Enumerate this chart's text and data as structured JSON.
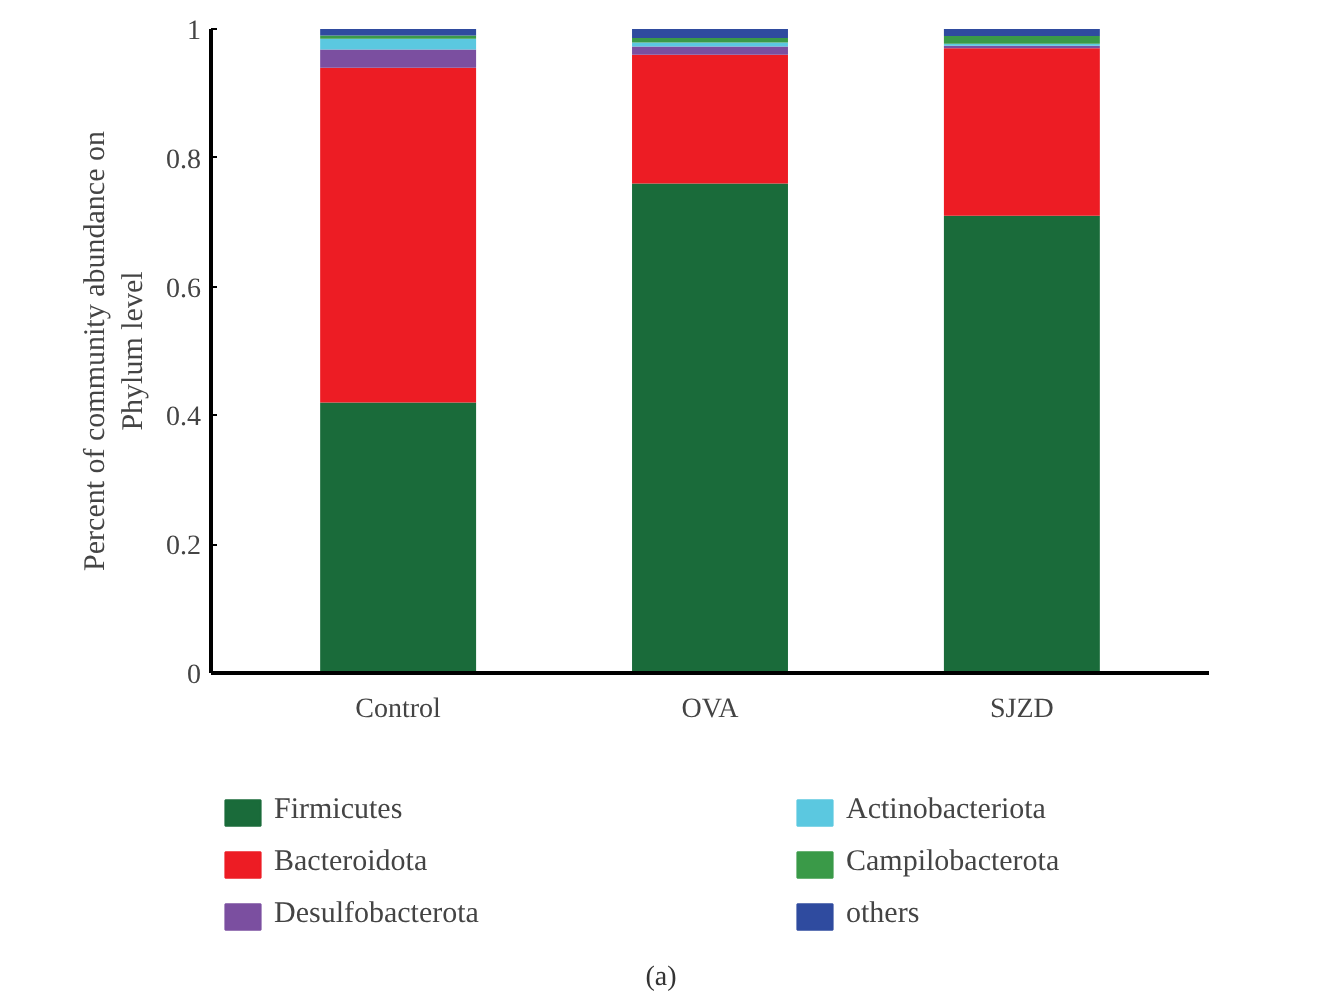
{
  "chart_data": {
    "type": "bar",
    "stacked": true,
    "ylabel": "Percent of community abundance on Phylum level",
    "categories": [
      "Control",
      "OVA",
      "SJZD"
    ],
    "series": [
      {
        "name": "Firmicutes",
        "color": "#1a6b3a",
        "values": [
          0.42,
          0.76,
          0.71
        ]
      },
      {
        "name": "Bacteroidota",
        "color": "#ed1c24",
        "values": [
          0.52,
          0.2,
          0.26
        ]
      },
      {
        "name": "Desulfobacterota",
        "color": "#7b4fa0",
        "values": [
          0.028,
          0.013,
          0.004
        ]
      },
      {
        "name": "Actinobacteriota",
        "color": "#5bc8e0",
        "values": [
          0.017,
          0.006,
          0.003
        ]
      },
      {
        "name": "Campilobacterota",
        "color": "#3a9a48",
        "values": [
          0.005,
          0.007,
          0.012
        ]
      },
      {
        "name": "others",
        "color": "#2f4b9f",
        "values": [
          0.01,
          0.014,
          0.011
        ]
      }
    ],
    "ylim": [
      0,
      1
    ],
    "yticks": [
      0,
      0.2,
      0.4,
      0.6,
      0.8,
      1
    ],
    "grid": false,
    "legend": "bottom",
    "annotations": [
      "(a)"
    ]
  }
}
